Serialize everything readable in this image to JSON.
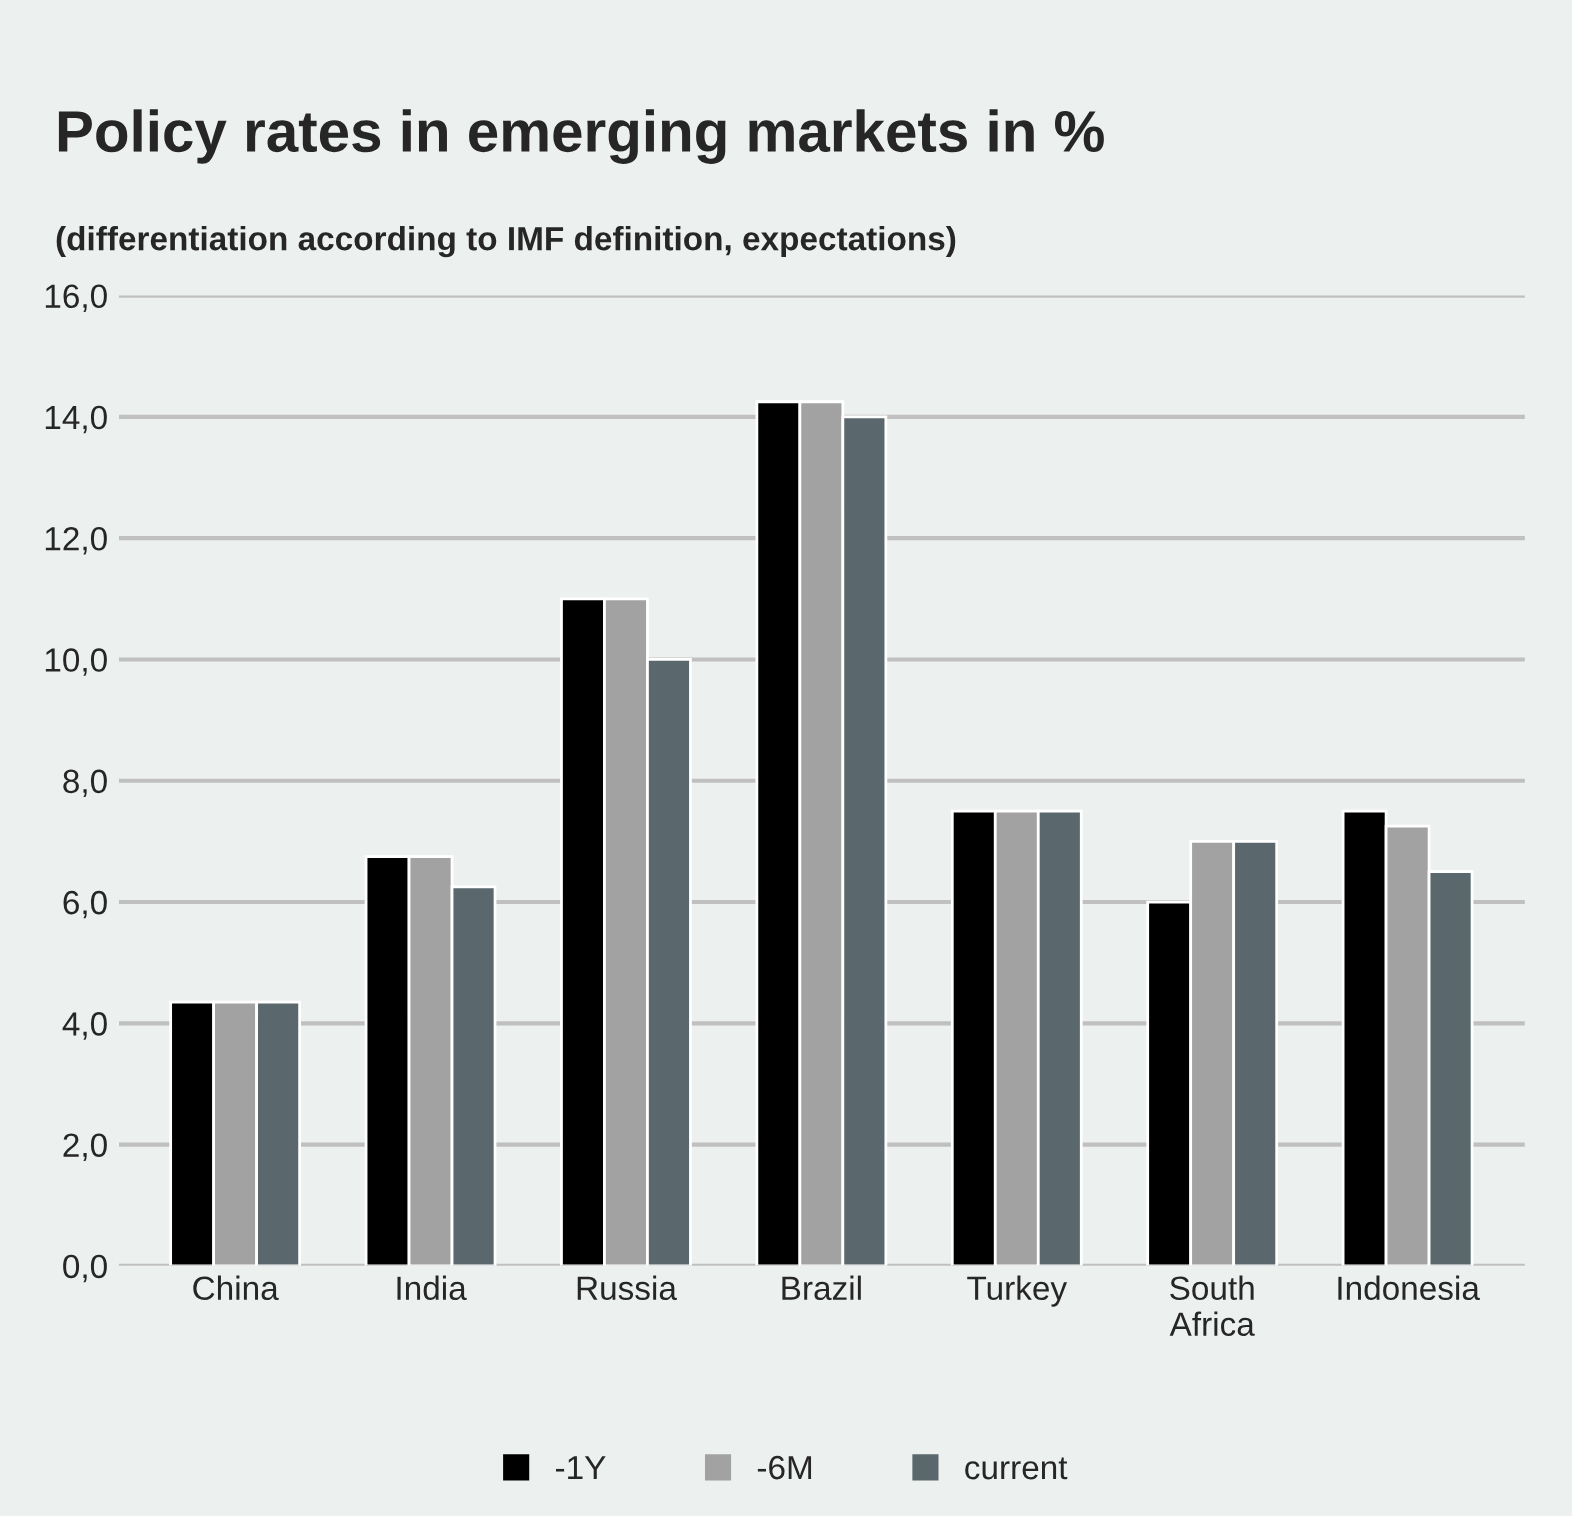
{
  "chart_data": {
    "type": "bar",
    "title": "Policy rates in emerging markets in %",
    "subtitle": "(differentiation according to IMF definition, expectations)",
    "categories": [
      "China",
      "India",
      "Russia",
      "Brazil",
      "Turkey",
      "South\nAfrica",
      "Indonesia"
    ],
    "series": [
      {
        "name": "-1Y",
        "color": "#000000",
        "values": [
          4.35,
          6.75,
          11.0,
          14.25,
          7.5,
          6.0,
          7.5
        ]
      },
      {
        "name": "-6M",
        "color": "#a2a2a2",
        "values": [
          4.35,
          6.75,
          11.0,
          14.25,
          7.5,
          7.0,
          7.25
        ]
      },
      {
        "name": "current",
        "color": "#5a676c",
        "values": [
          4.35,
          6.25,
          10.0,
          14.0,
          7.5,
          7.0,
          6.5
        ]
      }
    ],
    "ylim": [
      0,
      16
    ],
    "yticks": [
      {
        "value": 0,
        "label": "0,0"
      },
      {
        "value": 2,
        "label": "2,0"
      },
      {
        "value": 4,
        "label": "4,0"
      },
      {
        "value": 6,
        "label": "6,0"
      },
      {
        "value": 8,
        "label": "8,0"
      },
      {
        "value": 10,
        "label": "10,0"
      },
      {
        "value": 12,
        "label": "12,0"
      },
      {
        "value": 14,
        "label": "14,0"
      },
      {
        "value": 16,
        "label": "16,0"
      }
    ],
    "grid": "y",
    "legend": "bottom"
  }
}
